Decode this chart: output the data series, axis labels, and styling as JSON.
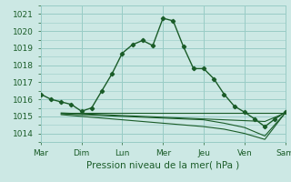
{
  "bg_color": "#cce8e4",
  "grid_color": "#99ccc6",
  "line_color": "#1a5c28",
  "xlabel": "Pression niveau de la mer( hPa )",
  "ylim": [
    1013.5,
    1021.5
  ],
  "yticks": [
    1014,
    1015,
    1016,
    1017,
    1018,
    1019,
    1020,
    1021
  ],
  "day_labels": [
    "Mar",
    "Dim",
    "Lun",
    "Mer",
    "Jeu",
    "Ven",
    "Sam"
  ],
  "day_positions": [
    0,
    4,
    8,
    12,
    16,
    20,
    24
  ],
  "series1_x": [
    0,
    1,
    2,
    3,
    4,
    5,
    6,
    7,
    8,
    9,
    10,
    11,
    12,
    13,
    14,
    15,
    16,
    17,
    18,
    19,
    20,
    21,
    22,
    23,
    24
  ],
  "series1_y": [
    1016.3,
    1016.0,
    1015.85,
    1015.7,
    1015.3,
    1015.5,
    1016.5,
    1017.5,
    1018.7,
    1019.2,
    1019.45,
    1019.15,
    1020.75,
    1020.6,
    1019.1,
    1017.8,
    1017.8,
    1017.2,
    1016.3,
    1015.6,
    1015.25,
    1014.85,
    1014.4,
    1014.85,
    1015.25
  ],
  "series2_x": [
    2,
    4,
    6,
    8,
    10,
    12,
    14,
    16,
    18,
    20,
    22,
    24
  ],
  "series2_y": [
    1015.2,
    1015.2,
    1015.2,
    1015.2,
    1015.2,
    1015.2,
    1015.2,
    1015.2,
    1015.2,
    1015.2,
    1015.2,
    1015.2
  ],
  "series3_x": [
    2,
    4,
    6,
    8,
    10,
    12,
    14,
    16,
    18,
    20,
    22,
    24
  ],
  "series3_y": [
    1015.2,
    1015.15,
    1015.1,
    1015.05,
    1015.0,
    1014.95,
    1014.9,
    1014.85,
    1014.8,
    1014.75,
    1014.7,
    1015.2
  ],
  "series4_x": [
    2,
    4,
    6,
    8,
    10,
    12,
    14,
    16,
    18,
    20,
    22,
    24
  ],
  "series4_y": [
    1015.15,
    1015.1,
    1015.05,
    1015.0,
    1014.95,
    1014.9,
    1014.85,
    1014.8,
    1014.6,
    1014.35,
    1013.85,
    1015.2
  ],
  "series5_x": [
    2,
    4,
    6,
    8,
    10,
    12,
    14,
    16,
    18,
    20,
    22,
    24
  ],
  "series5_y": [
    1015.1,
    1015.0,
    1014.9,
    1014.8,
    1014.7,
    1014.6,
    1014.5,
    1014.4,
    1014.25,
    1014.0,
    1013.65,
    1015.2
  ]
}
